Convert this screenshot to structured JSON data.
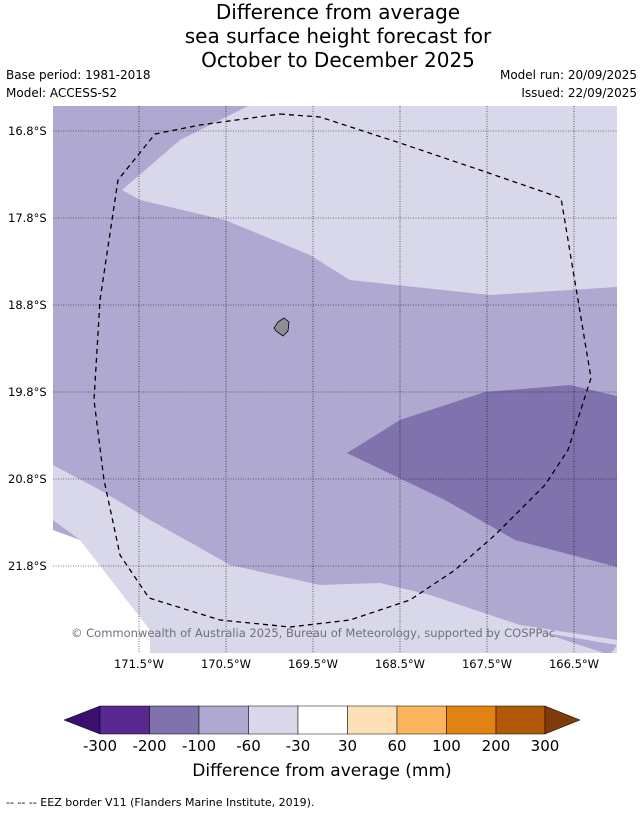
{
  "header": {
    "title_lines": [
      "Difference from average",
      "sea surface height forecast for",
      "October to December 2025"
    ],
    "base_period": "Base period: 1981-2018",
    "model": "Model: ACCESS-S2",
    "model_run": "Model run: 20/09/2025",
    "issued": "Issued: 22/09/2025"
  },
  "map": {
    "lat_labels": [
      "16.8°S",
      "17.8°S",
      "18.8°S",
      "19.8°S",
      "20.8°S",
      "21.8°S"
    ],
    "lon_labels": [
      "171.5°W",
      "170.5°W",
      "169.5°W",
      "168.5°W",
      "167.5°W",
      "166.5°W"
    ],
    "credit": "© Commonwealth of Australia 2025, Bureau of Meteorology, supported by COSPPac",
    "colors": {
      "c_m200_m100": "#7f72ad",
      "c_m100_m60": "#afa9d1",
      "c_m60_m30": "#d8d8ea",
      "island": "#8d8d96"
    }
  },
  "colorbar": {
    "tick_labels": [
      "-300",
      "-200",
      "-100",
      "-60",
      "-30",
      "30",
      "60",
      "100",
      "200",
      "300"
    ],
    "colors": [
      "#3b0f6e",
      "#5a2891",
      "#7f72ad",
      "#afa9d1",
      "#d8d8ea",
      "#ffffff",
      "#fde0b7",
      "#fbb45e",
      "#e08214",
      "#b35806",
      "#7f3b08"
    ],
    "title": "Difference from average (mm)"
  },
  "footnote": "--  --  -- EEZ border V11 (Flanders Marine Institute, 2019)."
}
